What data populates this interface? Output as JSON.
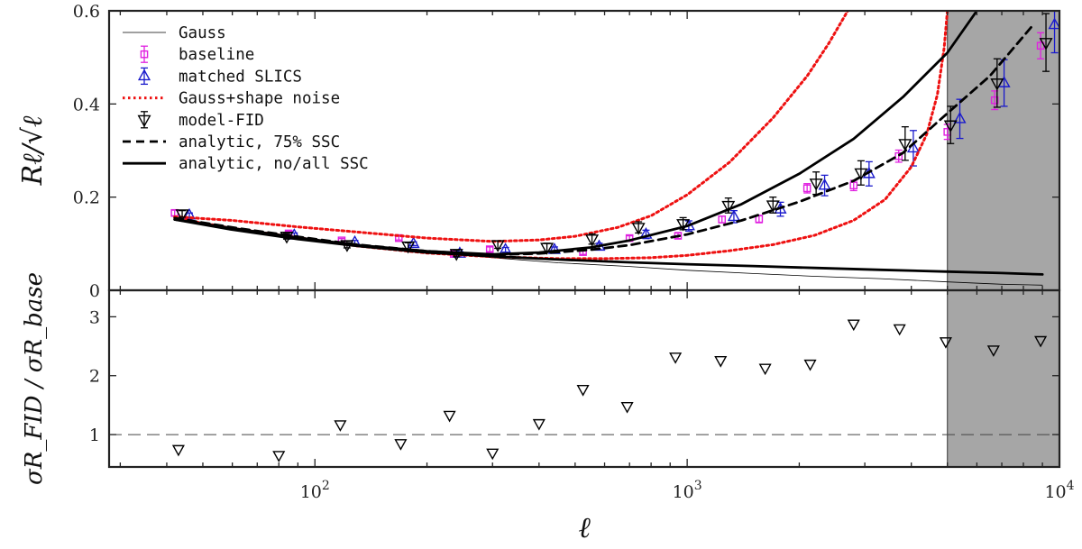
{
  "chart_data": [
    {
      "type": "line",
      "panel": "top",
      "ylabel": "Rℓ/√ℓ",
      "xscale": "log",
      "xlim": [
        28,
        10000
      ],
      "ylim": [
        0,
        0.6
      ],
      "yticks": [
        0,
        0.2,
        0.4,
        0.6
      ],
      "ytick_labels": [
        "0",
        "0.2",
        "0.4",
        "0.6"
      ],
      "legend_position": "top-left",
      "shaded_region": {
        "x_from": 5000,
        "x_to": 10000,
        "color": "#a6a6a6"
      },
      "series": [
        {
          "name": "Gauss",
          "style": "thin-solid",
          "color": "#000000",
          "x": [
            42,
            60,
            90,
            130,
            200,
            300,
            450,
            700,
            1000,
            1500,
            2200,
            3300,
            5000,
            7000,
            9000
          ],
          "y": [
            0.156,
            0.135,
            0.115,
            0.098,
            0.082,
            0.07,
            0.059,
            0.051,
            0.043,
            0.036,
            0.03,
            0.025,
            0.018,
            0.013,
            0.011
          ]
        },
        {
          "name": "baseline",
          "style": "square-errorbar",
          "color": "#e020e0",
          "x": [
            42,
            85,
            118,
            168,
            236,
            295,
            525,
            700,
            945,
            1240,
            1560,
            2100,
            2800,
            3700,
            5000,
            6700,
            8900
          ],
          "y": [
            0.166,
            0.122,
            0.107,
            0.112,
            0.078,
            0.088,
            0.082,
            0.112,
            0.117,
            0.152,
            0.153,
            0.219,
            0.225,
            0.288,
            0.34,
            0.408,
            0.525
          ],
          "err": [
            0.006,
            0.005,
            0.004,
            0.004,
            0.004,
            0.005,
            0.005,
            0.005,
            0.006,
            0.007,
            0.008,
            0.01,
            0.011,
            0.013,
            0.016,
            0.02,
            0.028
          ]
        },
        {
          "name": "matched SLICS",
          "style": "triangle-up-errorbar",
          "color": "#1a1acc",
          "x": [
            46,
            88,
            128,
            184,
            245,
            325,
            440,
            580,
            775,
            1010,
            1335,
            1780,
            2340,
            3080,
            4050,
            5400,
            7100,
            9700
          ],
          "y": [
            0.161,
            0.118,
            0.103,
            0.1,
            0.079,
            0.087,
            0.087,
            0.094,
            0.12,
            0.138,
            0.158,
            0.174,
            0.225,
            0.25,
            0.305,
            0.368,
            0.445,
            0.57
          ],
          "err": [
            0.005,
            0.005,
            0.004,
            0.004,
            0.004,
            0.005,
            0.006,
            0.007,
            0.009,
            0.011,
            0.013,
            0.015,
            0.022,
            0.026,
            0.038,
            0.042,
            0.05,
            0.06
          ]
        },
        {
          "name": "Gauss+shape noise",
          "style": "dotted",
          "color": "#ee1111",
          "x": [
            42,
            60,
            90,
            130,
            200,
            300,
            400,
            500,
            650,
            800,
            1000,
            1300,
            1700,
            2100,
            2400,
            2700
          ],
          "y": [
            0.158,
            0.15,
            0.136,
            0.125,
            0.112,
            0.105,
            0.108,
            0.116,
            0.135,
            0.16,
            0.205,
            0.275,
            0.37,
            0.46,
            0.53,
            0.6
          ]
        },
        {
          "name": "Gauss+shape noise",
          "style": "dotted",
          "color": "#ee1111",
          "x": [
            42,
            60,
            90,
            130,
            200,
            300,
            450,
            600,
            800,
            1000,
            1300,
            1700,
            2200,
            2800,
            3400,
            4000,
            4400,
            4700,
            4900,
            5000
          ],
          "y": [
            0.155,
            0.133,
            0.113,
            0.095,
            0.08,
            0.072,
            0.068,
            0.068,
            0.07,
            0.075,
            0.085,
            0.098,
            0.118,
            0.15,
            0.195,
            0.265,
            0.335,
            0.42,
            0.52,
            0.6
          ]
        },
        {
          "name": "model-FID",
          "style": "triangle-down-errorbar",
          "color": "#000000",
          "x": [
            44,
            84,
            122,
            178,
            240,
            310,
            420,
            555,
            740,
            975,
            1290,
            1700,
            2220,
            2930,
            3850,
            5100,
            6800,
            9200
          ],
          "y": [
            0.164,
            0.116,
            0.098,
            0.095,
            0.079,
            0.098,
            0.092,
            0.11,
            0.135,
            0.143,
            0.182,
            0.183,
            0.23,
            0.252,
            0.315,
            0.355,
            0.445,
            0.532
          ],
          "err": [
            0.007,
            0.006,
            0.007,
            0.007,
            0.007,
            0.008,
            0.009,
            0.011,
            0.012,
            0.013,
            0.016,
            0.017,
            0.024,
            0.026,
            0.036,
            0.04,
            0.052,
            0.062
          ]
        },
        {
          "name": "analytic, 75% SSC",
          "style": "dashed",
          "color": "#000000",
          "x": [
            42,
            60,
            90,
            130,
            200,
            300,
            400,
            550,
            700,
            1000,
            1400,
            2000,
            2800,
            3800,
            5000,
            6500,
            8500
          ],
          "y": [
            0.155,
            0.135,
            0.115,
            0.098,
            0.084,
            0.076,
            0.079,
            0.087,
            0.097,
            0.12,
            0.15,
            0.19,
            0.235,
            0.295,
            0.38,
            0.46,
            0.57
          ]
        },
        {
          "name": "analytic, no/all SSC",
          "style": "thick-solid",
          "color": "#000000",
          "x": [
            42,
            60,
            90,
            130,
            200,
            300,
            400,
            550,
            700,
            1000,
            1400,
            2000,
            2800,
            3800,
            5000,
            6000
          ],
          "y": [
            0.152,
            0.133,
            0.113,
            0.097,
            0.084,
            0.077,
            0.081,
            0.092,
            0.107,
            0.138,
            0.185,
            0.25,
            0.325,
            0.415,
            0.51,
            0.6
          ]
        },
        {
          "name": "analytic, no/all SSC",
          "style": "thick-solid",
          "color": "#000000",
          "x": [
            42,
            60,
            90,
            130,
            200,
            300,
            450,
            700,
            1000,
            1500,
            2200,
            3300,
            5000,
            7000,
            9000
          ],
          "y": [
            0.152,
            0.13,
            0.11,
            0.095,
            0.081,
            0.073,
            0.066,
            0.06,
            0.056,
            0.052,
            0.048,
            0.044,
            0.04,
            0.037,
            0.034
          ]
        }
      ]
    },
    {
      "type": "scatter",
      "panel": "bottom",
      "ylabel": "σR_FID / σR_base",
      "xlabel": "ℓ",
      "xscale": "log",
      "xlim": [
        28,
        10000
      ],
      "xticks": [
        100,
        1000,
        10000
      ],
      "xtick_labels": [
        {
          "base": "10",
          "exp": "2"
        },
        {
          "base": "10",
          "exp": "3"
        },
        {
          "base": "10",
          "exp": "4"
        }
      ],
      "ylim": [
        0.45,
        3.45
      ],
      "yticks": [
        1,
        2,
        3
      ],
      "ytick_labels": [
        "1",
        "2",
        "3"
      ],
      "reference_line": {
        "y": 1,
        "style": "dashed"
      },
      "shaded_region": {
        "x_from": 5000,
        "x_to": 10000,
        "color": "#a6a6a6"
      },
      "series": [
        {
          "name": "",
          "style": "triangle-down",
          "color": "#000000",
          "x": [
            43,
            80,
            117,
            170,
            230,
            300,
            400,
            525,
            690,
            930,
            1230,
            1620,
            2140,
            2800,
            3720,
            4950,
            6650,
            8900
          ],
          "y": [
            0.75,
            0.65,
            1.17,
            0.85,
            1.33,
            0.69,
            1.19,
            1.77,
            1.48,
            2.32,
            2.26,
            2.13,
            2.2,
            2.88,
            2.8,
            2.58,
            2.44,
            2.6
          ]
        }
      ]
    }
  ],
  "legend": [
    {
      "label": "Gauss",
      "marker": "thin-line"
    },
    {
      "label": "baseline",
      "marker": "square-errorbar"
    },
    {
      "label": "matched SLICS",
      "marker": "triangle-up-errorbar"
    },
    {
      "label": "Gauss+shape noise",
      "marker": "dotted-line"
    },
    {
      "label": "model-FID",
      "marker": "triangle-down-errorbar"
    },
    {
      "label": "analytic, 75% SSC",
      "marker": "dashed-line"
    },
    {
      "label": "analytic, no/all SSC",
      "marker": "thick-line"
    }
  ],
  "colors": {
    "baseline": "#e020e0",
    "matched_slics": "#1a1acc",
    "gauss_shape_noise": "#ee1111",
    "black": "#000000",
    "shade": "#a6a6a6"
  }
}
